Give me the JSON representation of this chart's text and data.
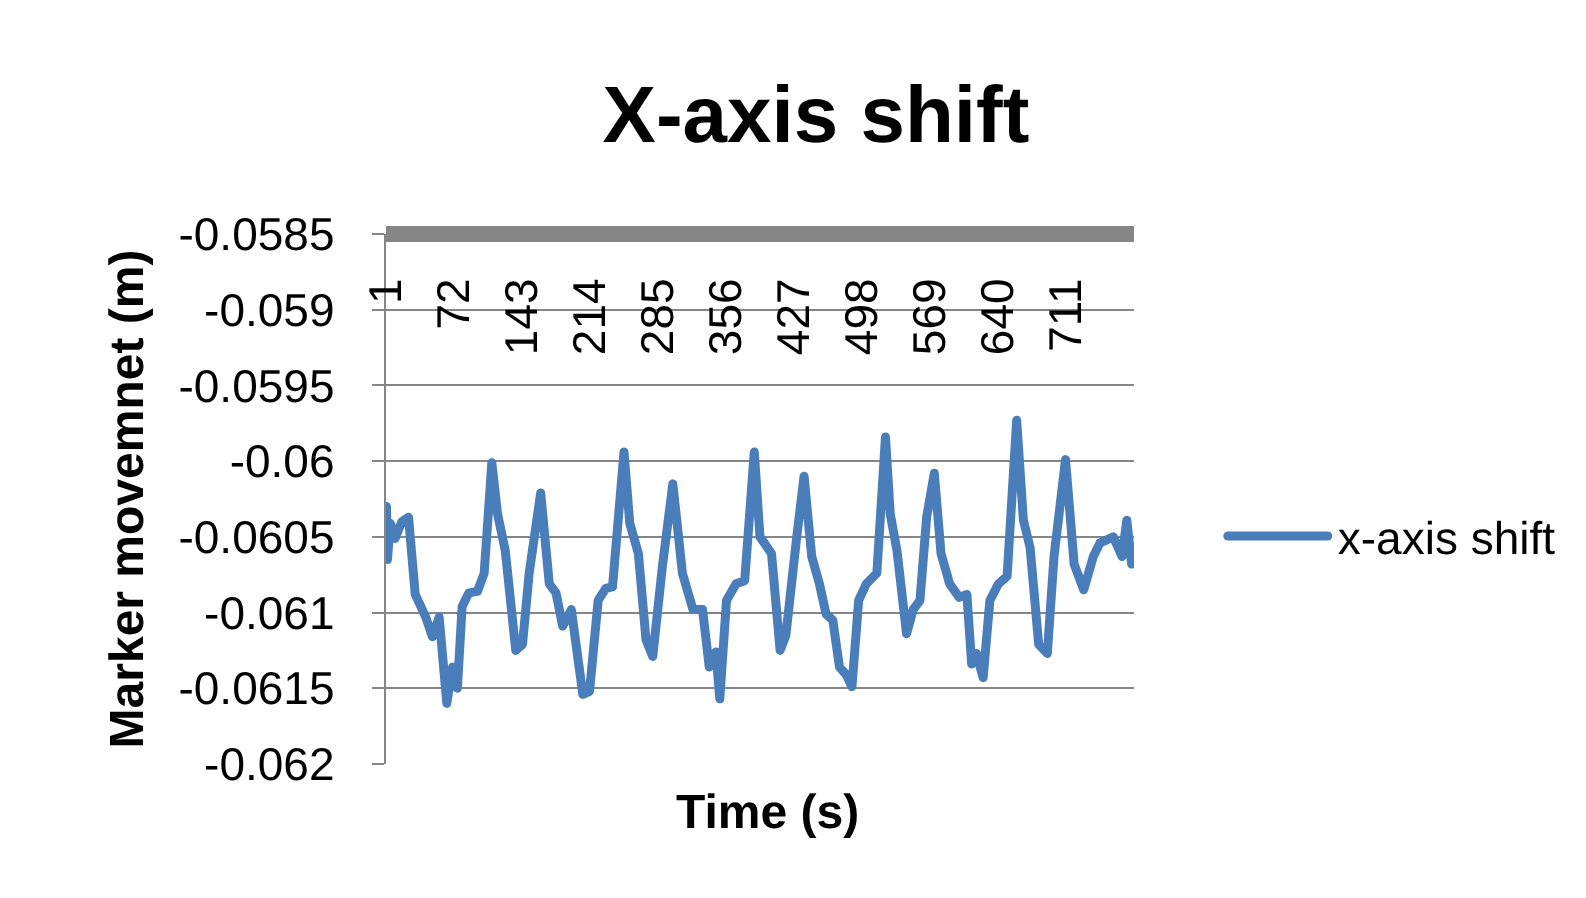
{
  "chart_data": {
    "type": "line",
    "title": "X-axis shift",
    "xlabel": "Time (s)",
    "ylabel": "Marker movemnet (m)",
    "xlim": [
      0.5,
      781.5
    ],
    "xticks": [
      1,
      72,
      143,
      214,
      285,
      356,
      427,
      498,
      569,
      640,
      711
    ],
    "ylim": [
      -0.062,
      -0.0585
    ],
    "yticks": [
      -0.062,
      -0.0615,
      -0.061,
      -0.0605,
      -0.06,
      -0.0595,
      -0.059,
      -0.0585
    ],
    "grid": "y",
    "legend": "right",
    "marker": "none",
    "line_style": "solid",
    "series": [
      {
        "name": "x-axis shift",
        "color": "#4a7ebb",
        "x": [
          1,
          2,
          5,
          10,
          17,
          24,
          31,
          42,
          49,
          56,
          64,
          70,
          75,
          80,
          87,
          96,
          103,
          111,
          117,
          125,
          136,
          143,
          150,
          162,
          171,
          178,
          185,
          194,
          206,
          213,
          222,
          230,
          237,
          249,
          255,
          264,
          272,
          279,
          289,
          300,
          310,
          321,
          331,
          338,
          345,
          349,
          356,
          366,
          375,
          385,
          391,
          403,
          412,
          418,
          422,
          429,
          437,
          445,
          453,
          460,
          467,
          474,
          481,
          487,
          494,
          502,
          513,
          522,
          527,
          534,
          544,
          551,
          558,
          565,
          573,
          580,
          589,
          599,
          607,
          612,
          617,
          624,
          631,
          640,
          649,
          659,
          666,
          673,
          682,
          691,
          698,
          710,
          719,
          729,
          739,
          746,
          753,
          760,
          769,
          774,
          779
        ],
        "values": [
          -0.0603,
          -0.06065,
          -0.06041,
          -0.06051,
          -0.0604,
          -0.06037,
          -0.06088,
          -0.06103,
          -0.06116,
          -0.06103,
          -0.0616,
          -0.06136,
          -0.0615,
          -0.06096,
          -0.06087,
          -0.06086,
          -0.06074,
          -0.06001,
          -0.06035,
          -0.06059,
          -0.06125,
          -0.06121,
          -0.06074,
          -0.06021,
          -0.06081,
          -0.06087,
          -0.06109,
          -0.06098,
          -0.06154,
          -0.06152,
          -0.06092,
          -0.06084,
          -0.06083,
          -0.05994,
          -0.06041,
          -0.06061,
          -0.06118,
          -0.06129,
          -0.0607,
          -0.06015,
          -0.06074,
          -0.06098,
          -0.06098,
          -0.06136,
          -0.06126,
          -0.06157,
          -0.06092,
          -0.06081,
          -0.06079,
          -0.05994,
          -0.0605,
          -0.06061,
          -0.06125,
          -0.06115,
          -0.06092,
          -0.06052,
          -0.0601,
          -0.06063,
          -0.06081,
          -0.06101,
          -0.06105,
          -0.06136,
          -0.06141,
          -0.06149,
          -0.06092,
          -0.06081,
          -0.06074,
          -0.05984,
          -0.06035,
          -0.06059,
          -0.06114,
          -0.06098,
          -0.06092,
          -0.06037,
          -0.06008,
          -0.06061,
          -0.06081,
          -0.0609,
          -0.06088,
          -0.06134,
          -0.06127,
          -0.06143,
          -0.06092,
          -0.06081,
          -0.06076,
          -0.05973,
          -0.06039,
          -0.06057,
          -0.06121,
          -0.06127,
          -0.06063,
          -0.05999,
          -0.06068,
          -0.06085,
          -0.06063,
          -0.06054,
          -0.06052,
          -0.0605,
          -0.06063,
          -0.06039,
          -0.06068
        ]
      }
    ]
  }
}
